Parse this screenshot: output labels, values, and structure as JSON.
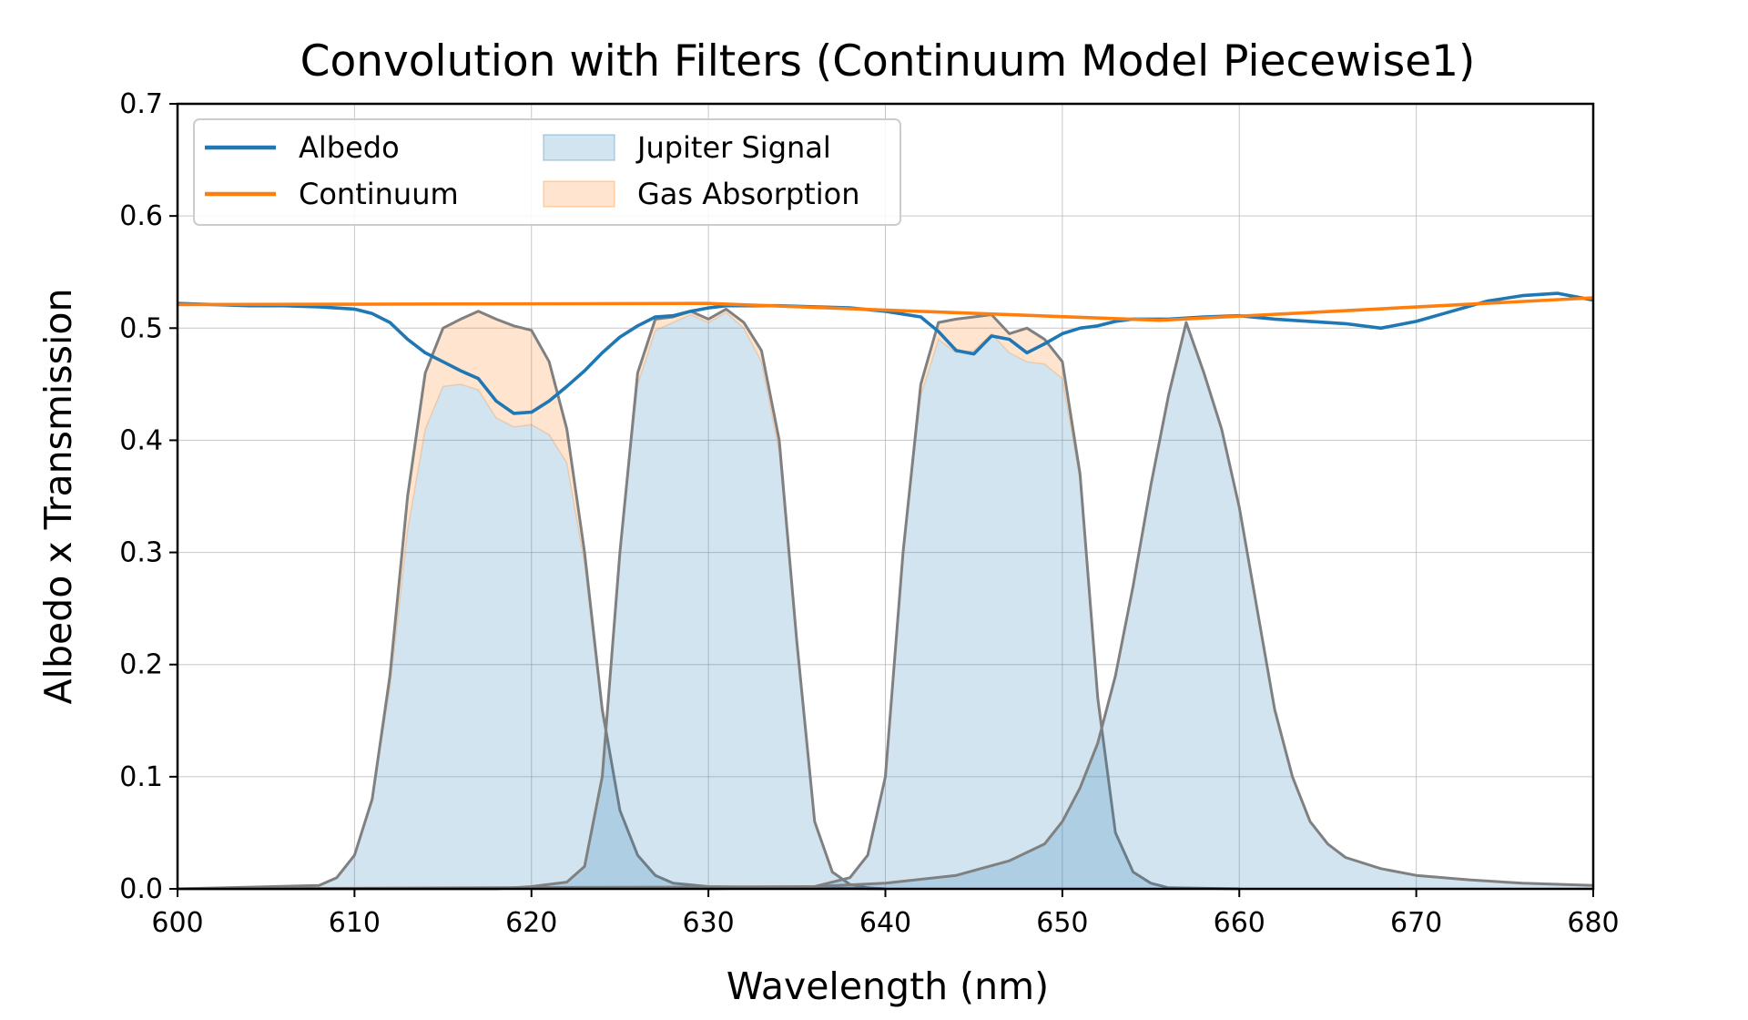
{
  "chart_data": {
    "type": "area",
    "title": "Convolution with Filters (Continuum Model Piecewise1)",
    "xlabel": "Wavelength (nm)",
    "ylabel": "Albedo x Transmission",
    "xlim": [
      600,
      680
    ],
    "ylim": [
      0,
      0.7
    ],
    "xticks": [
      600,
      610,
      620,
      630,
      640,
      650,
      660,
      670,
      680
    ],
    "yticks": [
      0.0,
      0.1,
      0.2,
      0.3,
      0.4,
      0.5,
      0.6,
      0.7
    ],
    "xtick_labels": [
      "600",
      "610",
      "620",
      "630",
      "640",
      "650",
      "660",
      "670",
      "680"
    ],
    "ytick_labels": [
      "0.0",
      "0.1",
      "0.2",
      "0.3",
      "0.4",
      "0.5",
      "0.6",
      "0.7"
    ],
    "grid": true,
    "legend_position": "top-left",
    "legend": [
      {
        "label": "Albedo",
        "kind": "line",
        "color": "#1f77b4"
      },
      {
        "label": "Continuum",
        "kind": "line",
        "color": "#ff7f0e"
      },
      {
        "label": "Jupiter Signal",
        "kind": "patch",
        "color": "#1f77b4"
      },
      {
        "label": "Gas Absorption",
        "kind": "patch",
        "color": "#ff7f0e"
      }
    ],
    "colors": {
      "albedo": "#1f77b4",
      "continuum": "#ff7f0e",
      "signal_fill": "#1f77b4",
      "gas_fill": "#ff7f0e",
      "filter_outline": "#808080"
    },
    "albedo": {
      "name": "Albedo",
      "x": [
        600,
        602,
        604,
        606,
        608,
        610,
        611,
        612,
        613,
        614,
        615,
        616,
        617,
        618,
        619,
        620,
        621,
        622,
        623,
        624,
        625,
        626,
        627,
        628,
        629,
        630,
        631,
        632,
        634,
        636,
        638,
        640,
        642,
        643,
        644,
        645,
        646,
        647,
        648,
        649,
        650,
        651,
        652,
        653,
        654,
        656,
        658,
        660,
        662,
        664,
        666,
        668,
        670,
        672,
        674,
        676,
        678,
        680
      ],
      "y": [
        0.522,
        0.521,
        0.52,
        0.52,
        0.519,
        0.517,
        0.513,
        0.505,
        0.49,
        0.478,
        0.47,
        0.462,
        0.455,
        0.435,
        0.424,
        0.425,
        0.435,
        0.448,
        0.462,
        0.478,
        0.492,
        0.502,
        0.51,
        0.511,
        0.515,
        0.518,
        0.52,
        0.52,
        0.52,
        0.519,
        0.518,
        0.515,
        0.51,
        0.497,
        0.48,
        0.477,
        0.493,
        0.49,
        0.478,
        0.486,
        0.495,
        0.5,
        0.502,
        0.506,
        0.508,
        0.508,
        0.51,
        0.511,
        0.508,
        0.506,
        0.504,
        0.5,
        0.506,
        0.515,
        0.524,
        0.529,
        0.531,
        0.525
      ]
    },
    "continuum": {
      "name": "Continuum",
      "x": [
        600,
        630,
        655.5,
        680
      ],
      "y": [
        0.521,
        0.522,
        0.507,
        0.527
      ]
    },
    "filters": [
      {
        "x": [
          600,
          608,
          609,
          610,
          611,
          612,
          613,
          614,
          615,
          616,
          617,
          618,
          619,
          620,
          621,
          622,
          623,
          624,
          625,
          626,
          627,
          628,
          630,
          640
        ],
        "total": [
          0.0,
          0.003,
          0.01,
          0.03,
          0.08,
          0.19,
          0.35,
          0.46,
          0.5,
          0.508,
          0.515,
          0.508,
          0.502,
          0.498,
          0.47,
          0.41,
          0.3,
          0.16,
          0.07,
          0.03,
          0.012,
          0.005,
          0.002,
          0.0
        ],
        "signal": [
          0.0,
          0.003,
          0.01,
          0.03,
          0.08,
          0.18,
          0.32,
          0.41,
          0.448,
          0.45,
          0.445,
          0.42,
          0.412,
          0.414,
          0.405,
          0.38,
          0.29,
          0.155,
          0.07,
          0.03,
          0.012,
          0.005,
          0.002,
          0.0
        ]
      },
      {
        "x": [
          600,
          618,
          620,
          622,
          623,
          624,
          625,
          626,
          627,
          628,
          629,
          630,
          631,
          632,
          633,
          634,
          635,
          636,
          637,
          638,
          639,
          640
        ],
        "total": [
          0.0,
          0.0,
          0.002,
          0.006,
          0.02,
          0.1,
          0.3,
          0.46,
          0.508,
          0.51,
          0.515,
          0.508,
          0.517,
          0.505,
          0.48,
          0.4,
          0.22,
          0.06,
          0.015,
          0.004,
          0.001,
          0.0
        ],
        "signal": [
          0.0,
          0.0,
          0.002,
          0.006,
          0.02,
          0.1,
          0.3,
          0.45,
          0.498,
          0.505,
          0.512,
          0.505,
          0.514,
          0.5,
          0.47,
          0.39,
          0.215,
          0.06,
          0.015,
          0.004,
          0.001,
          0.0
        ]
      },
      {
        "x": [
          630,
          636,
          638,
          639,
          640,
          641,
          642,
          643,
          644,
          645,
          646,
          647,
          648,
          649,
          650,
          651,
          652,
          653,
          654,
          655,
          656,
          660
        ],
        "total": [
          0.0,
          0.002,
          0.01,
          0.03,
          0.1,
          0.3,
          0.45,
          0.505,
          0.508,
          0.51,
          0.512,
          0.495,
          0.5,
          0.49,
          0.47,
          0.37,
          0.17,
          0.05,
          0.015,
          0.005,
          0.001,
          0.0
        ],
        "signal": [
          0.0,
          0.002,
          0.01,
          0.03,
          0.1,
          0.3,
          0.44,
          0.49,
          0.478,
          0.48,
          0.495,
          0.478,
          0.47,
          0.468,
          0.455,
          0.365,
          0.165,
          0.05,
          0.015,
          0.005,
          0.001,
          0.0
        ]
      },
      {
        "x": [
          600,
          636,
          640,
          644,
          647,
          649,
          650,
          651,
          652,
          653,
          654,
          655,
          656,
          657,
          658,
          659,
          660,
          661,
          662,
          663,
          664,
          665,
          666,
          668,
          670,
          673,
          676,
          680
        ],
        "total": [
          0.0,
          0.002,
          0.005,
          0.012,
          0.025,
          0.04,
          0.06,
          0.09,
          0.13,
          0.19,
          0.27,
          0.36,
          0.44,
          0.505,
          0.46,
          0.41,
          0.34,
          0.25,
          0.16,
          0.1,
          0.06,
          0.04,
          0.028,
          0.018,
          0.012,
          0.008,
          0.005,
          0.003
        ],
        "signal": [
          0.0,
          0.002,
          0.005,
          0.012,
          0.025,
          0.04,
          0.06,
          0.09,
          0.13,
          0.19,
          0.27,
          0.36,
          0.44,
          0.505,
          0.46,
          0.41,
          0.34,
          0.25,
          0.16,
          0.1,
          0.06,
          0.04,
          0.028,
          0.018,
          0.012,
          0.008,
          0.005,
          0.003
        ]
      }
    ]
  }
}
